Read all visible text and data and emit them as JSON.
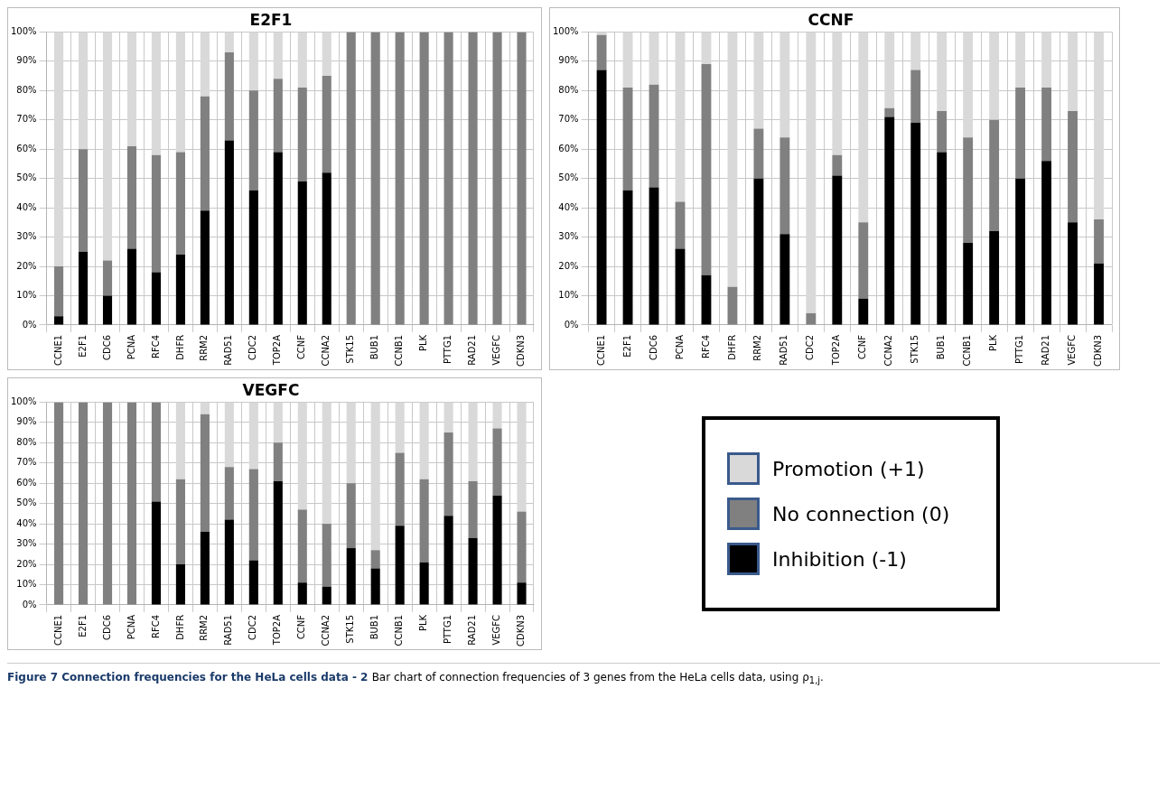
{
  "chart_data": [
    {
      "type": "bar",
      "title": "E2F1",
      "stacked": true,
      "grid": true,
      "categories": [
        "CCNE1",
        "E2F1",
        "CDC6",
        "PCNA",
        "RFC4",
        "DHFR",
        "RRM2",
        "RAD51",
        "CDC2",
        "TOP2A",
        "CCNF",
        "CCNA2",
        "STK15",
        "BUB1",
        "CCNB1",
        "PLK",
        "PTTG1",
        "RAD21",
        "VEGFC",
        "CDKN3"
      ],
      "ylim": [
        0,
        100
      ],
      "yticks": [
        {
          "value": 0,
          "label": "0%"
        },
        {
          "value": 10,
          "label": "10%"
        },
        {
          "value": 20,
          "label": "20%"
        },
        {
          "value": 30,
          "label": "30%"
        },
        {
          "value": 40,
          "label": "40%"
        },
        {
          "value": 50,
          "label": "50%"
        },
        {
          "value": 60,
          "label": "60%"
        },
        {
          "value": 70,
          "label": "70%"
        },
        {
          "value": 80,
          "label": "80%"
        },
        {
          "value": 90,
          "label": "90%"
        },
        {
          "value": 100,
          "label": "100%"
        }
      ],
      "series": [
        {
          "color": "#000000",
          "values": [
            3,
            25,
            10,
            26,
            18,
            24,
            39,
            63,
            46,
            59,
            49,
            52,
            0,
            0,
            0,
            0,
            0,
            0,
            0,
            0
          ]
        },
        {
          "color": "#808080",
          "values": [
            17,
            35,
            12,
            35,
            40,
            35,
            39,
            30,
            34,
            25,
            32,
            33,
            100,
            100,
            100,
            100,
            100,
            100,
            100,
            100
          ]
        },
        {
          "color": "#d9d9d9",
          "values": [
            80,
            40,
            78,
            39,
            42,
            41,
            22,
            7,
            20,
            16,
            19,
            15,
            0,
            0,
            0,
            0,
            0,
            0,
            0,
            0
          ]
        }
      ]
    },
    {
      "type": "bar",
      "title": "CCNF",
      "stacked": true,
      "grid": true,
      "categories": [
        "CCNE1",
        "E2F1",
        "CDC6",
        "PCNA",
        "RFC4",
        "DHFR",
        "RRM2",
        "RAD51",
        "CDC2",
        "TOP2A",
        "CCNF",
        "CCNA2",
        "STK15",
        "BUB1",
        "CCNB1",
        "PLK",
        "PTTG1",
        "RAD21",
        "VEGFC",
        "CDKN3"
      ],
      "ylim": [
        0,
        100
      ],
      "yticks": [
        {
          "value": 0,
          "label": "0%"
        },
        {
          "value": 10,
          "label": "10%"
        },
        {
          "value": 20,
          "label": "20%"
        },
        {
          "value": 30,
          "label": "30%"
        },
        {
          "value": 40,
          "label": "40%"
        },
        {
          "value": 50,
          "label": "50%"
        },
        {
          "value": 60,
          "label": "60%"
        },
        {
          "value": 70,
          "label": "70%"
        },
        {
          "value": 80,
          "label": "80%"
        },
        {
          "value": 90,
          "label": "90%"
        },
        {
          "value": 100,
          "label": "100%"
        }
      ],
      "series": [
        {
          "color": "#000000",
          "values": [
            87,
            46,
            47,
            26,
            17,
            0,
            50,
            31,
            0,
            51,
            9,
            71,
            69,
            59,
            28,
            32,
            50,
            56,
            35,
            21
          ]
        },
        {
          "color": "#808080",
          "values": [
            12,
            35,
            35,
            16,
            72,
            13,
            17,
            33,
            4,
            7,
            26,
            3,
            18,
            14,
            36,
            38,
            31,
            25,
            38,
            15
          ]
        },
        {
          "color": "#d9d9d9",
          "values": [
            1,
            19,
            18,
            58,
            11,
            87,
            33,
            36,
            96,
            42,
            65,
            26,
            13,
            27,
            36,
            30,
            19,
            19,
            27,
            64
          ]
        }
      ]
    },
    {
      "type": "bar",
      "title": "VEGFC",
      "stacked": true,
      "grid": true,
      "legend": "right",
      "categories": [
        "CCNE1",
        "E2F1",
        "CDC6",
        "PCNA",
        "RFC4",
        "DHFR",
        "RRM2",
        "RAD51",
        "CDC2",
        "TOP2A",
        "CCNF",
        "CCNA2",
        "STK15",
        "BUB1",
        "CCNB1",
        "PLK",
        "PTTG1",
        "RAD21",
        "VEGFC",
        "CDKN3"
      ],
      "ylim": [
        0,
        100
      ],
      "yticks": [
        {
          "value": 0,
          "label": "0%"
        },
        {
          "value": 10,
          "label": "10%"
        },
        {
          "value": 20,
          "label": "20%"
        },
        {
          "value": 30,
          "label": "30%"
        },
        {
          "value": 40,
          "label": "40%"
        },
        {
          "value": 50,
          "label": "50%"
        },
        {
          "value": 60,
          "label": "60%"
        },
        {
          "value": 70,
          "label": "70%"
        },
        {
          "value": 80,
          "label": "80%"
        },
        {
          "value": 90,
          "label": "90%"
        },
        {
          "value": 100,
          "label": "100%"
        }
      ],
      "series": [
        {
          "name": "Inhibition (-1)",
          "color": "#000000",
          "values": [
            0,
            0,
            0,
            0,
            51,
            20,
            36,
            42,
            22,
            61,
            11,
            9,
            28,
            18,
            39,
            21,
            44,
            33,
            54,
            11
          ]
        },
        {
          "name": "No connection (0)",
          "color": "#808080",
          "values": [
            100,
            100,
            100,
            100,
            49,
            42,
            58,
            26,
            45,
            19,
            36,
            31,
            32,
            9,
            36,
            41,
            41,
            28,
            33,
            35
          ]
        },
        {
          "name": "Promotion (+1)",
          "color": "#d9d9d9",
          "values": [
            0,
            0,
            0,
            0,
            0,
            38,
            6,
            32,
            33,
            20,
            53,
            60,
            40,
            73,
            25,
            38,
            15,
            39,
            13,
            54
          ]
        }
      ],
      "annotations": [
        "Figure 7 Connection frequencies for the HeLa cells data - 2",
        "Bar chart of connection frequencies of 3 genes from the HeLa cells data, using ρ$_{1,j}$."
      ]
    }
  ]
}
